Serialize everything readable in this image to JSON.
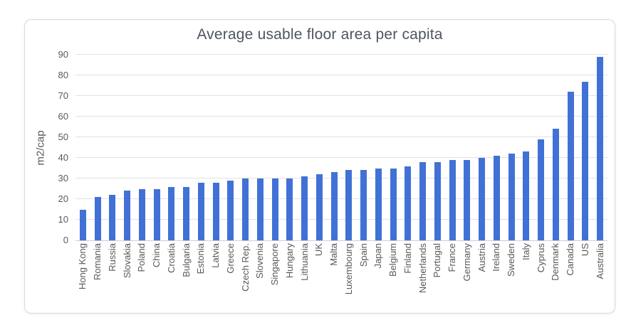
{
  "chart_data": {
    "type": "bar",
    "title": "Average usable floor area per capita",
    "ylabel": "m2/cap",
    "xlabel": "",
    "categories": [
      "Hong Kong",
      "Romania",
      "Russia",
      "Slovakia",
      "Poland",
      "China",
      "Croatia",
      "Bulgaria",
      "Estonia",
      "Latvia",
      "Greece",
      "Czech Rep.",
      "Slovenia",
      "Singapore",
      "Hungary",
      "Lithuania",
      "UK",
      "Malta",
      "Luxembourg",
      "Spain",
      "Japan",
      "Belgium",
      "Finland",
      "Netherlands",
      "Portugal",
      "France",
      "Germany",
      "Austria",
      "Ireland",
      "Sweden",
      "Italy",
      "Cyprus",
      "Denmark",
      "Canada",
      "US",
      "Australia"
    ],
    "values": [
      15,
      21,
      22,
      24,
      25,
      25,
      26,
      26,
      28,
      28,
      29,
      30,
      30,
      30,
      30,
      31,
      32,
      33,
      34,
      34,
      35,
      35,
      36,
      38,
      38,
      39,
      39,
      40,
      41,
      42,
      43,
      49,
      54,
      72,
      77,
      89
    ],
    "ylim": [
      0,
      90
    ],
    "yticks": [
      0,
      10,
      20,
      30,
      40,
      50,
      60,
      70,
      80,
      90
    ],
    "grid": true,
    "legend": "none",
    "colors": {
      "bar": "#4171d6",
      "title_text": "#4e5560",
      "axis_text": "#595959",
      "gridline": "#e2e2e2",
      "axis_line": "#cfcfcf",
      "frame_border": "#d9d9d9",
      "background": "#ffffff"
    }
  }
}
